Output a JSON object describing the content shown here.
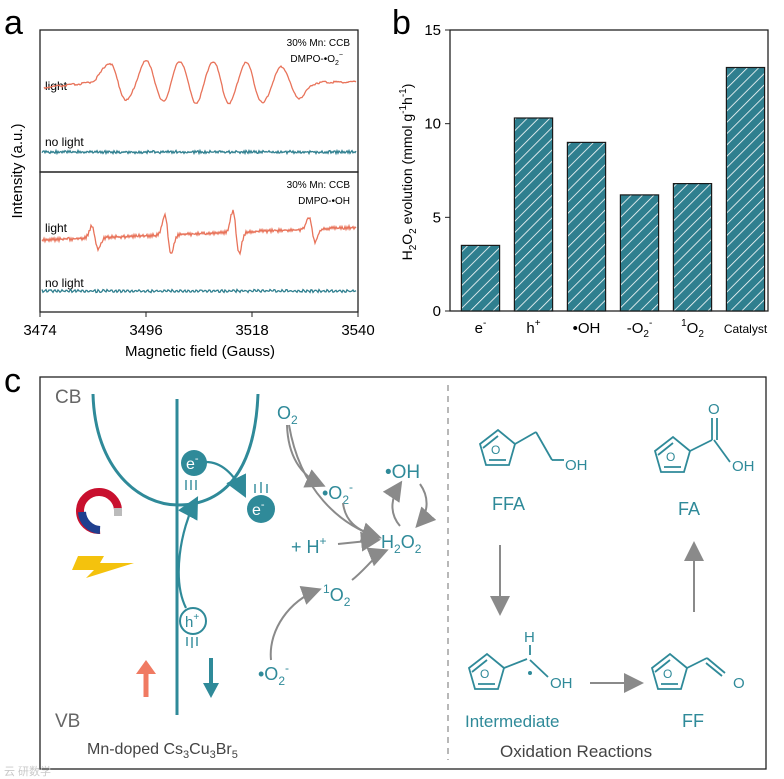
{
  "panel_labels": {
    "a": "a",
    "b": "b",
    "c": "c"
  },
  "panel_a": {
    "ylabel": "Intensity (a.u.)",
    "xlabel": "Magnetic field (Gauss)",
    "xticks": [
      "3474",
      "3496",
      "3518",
      "3540"
    ],
    "top": {
      "title_line1": "30% Mn: CCB",
      "title_line2": "DMPO-•O",
      "title_sub": "2",
      "title_sup": "−",
      "light": "light",
      "no_light": "no light"
    },
    "bottom": {
      "title_line1": "30% Mn: CCB",
      "title_line2": "DMPO-•OH",
      "light": "light",
      "no_light": "no light"
    },
    "colors": {
      "light": "#e8735a",
      "dark": "#2f7f8f"
    }
  },
  "chart_data": {
    "type": "bar",
    "ylabel": "H2O2 evolution (mmol g-1h-1)",
    "ylabel_parts": {
      "main": "H",
      "sub1": "2",
      "o": "O",
      "sub2": "2",
      "rest": " evolution (mmol g",
      "sup1": "-1",
      "h": "h",
      "sup2": "-1",
      "close": ")"
    },
    "ylim": [
      0,
      15
    ],
    "yticks": [
      "0",
      "5",
      "10",
      "15"
    ],
    "categories": [
      "e-",
      "h+",
      "•OH",
      "-O2-",
      "1O2",
      "Catalyst"
    ],
    "values": [
      3.5,
      10.3,
      9.0,
      6.2,
      6.8,
      13.0
    ],
    "bar_color": "#2f7f8f",
    "hatch": true
  },
  "panel_c": {
    "cb": "CB",
    "vb": "VB",
    "electron": "e",
    "hole": "h",
    "material_prefix": "Mn-doped Cs",
    "material_sub1": "3",
    "material_mid": "Cu",
    "material_sub2": "3",
    "material_mid2": "Br",
    "material_sub3": "5",
    "o2": "O",
    "o2_sub": "2",
    "superoxide": "•O",
    "superoxide_sub": "2",
    "superoxide_sup": "-",
    "oh_radical": "•OH",
    "h_plus": "+ H",
    "h_plus_sup": "+",
    "h2o2_h": "H",
    "h2o2_sub1": "2",
    "h2o2_o": "O",
    "h2o2_sub2": "2",
    "singlet_sup": "1",
    "singlet_o": "O",
    "singlet_sub": "2",
    "superoxide2": "•O",
    "superoxide2_sub": "2",
    "superoxide2_sup": "-",
    "ffa": "FFA",
    "fa": "FA",
    "ff": "FF",
    "intermediate": "Intermediate",
    "oxidation": "Oxidation Reactions",
    "oh_label": "OH",
    "o_label": "O",
    "h_label": "H",
    "teal": "#2f8a99",
    "gray": "#8a8a8a",
    "orange": "#f07a62"
  },
  "watermark": "云 研数学"
}
